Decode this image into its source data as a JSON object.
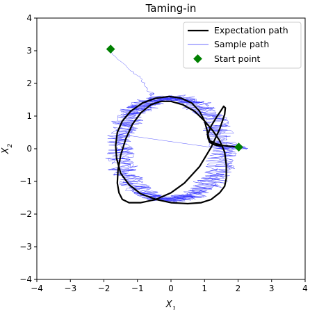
{
  "chart_data": {
    "type": "line",
    "title": "Taming-in",
    "xlabel": "X_1",
    "ylabel": "X_2",
    "xlim": [
      -4,
      4
    ],
    "ylim": [
      -4,
      4
    ],
    "xticks": [
      -4,
      -3,
      -2,
      -1,
      0,
      1,
      2,
      3,
      4
    ],
    "yticks": [
      -4,
      -3,
      -2,
      -1,
      0,
      1,
      2,
      3,
      4
    ],
    "grid": false,
    "legend_position": "top-right",
    "series": [
      {
        "name": "Expectation path",
        "kind": "line",
        "color": "#000000",
        "x": [
          2.02,
          1.7,
          1.55,
          1.35,
          1.15,
          1.1,
          1.2,
          1.35,
          1.48,
          1.57,
          1.62,
          1.6,
          1.45,
          1.2,
          0.85,
          0.4,
          0.0,
          -0.45,
          -0.9,
          -1.25,
          -1.45,
          -1.55,
          -1.6,
          -1.58,
          -1.5,
          -1.35,
          -1.15,
          -0.9,
          -0.6,
          -0.3,
          0.0,
          0.35,
          0.7,
          1.0,
          1.25,
          1.45,
          1.6,
          1.65,
          1.65,
          1.6,
          1.45,
          1.2,
          0.9,
          0.5,
          0.0,
          -0.45,
          -0.9,
          -1.25,
          -1.5,
          -1.62,
          -1.65,
          -1.6,
          -1.45,
          -1.2,
          -0.85,
          -0.45,
          -0.05,
          0.3,
          0.62,
          0.85,
          1.0,
          1.08,
          1.1,
          1.15,
          1.3,
          1.5
        ],
        "y": [
          0.05,
          0.08,
          0.1,
          0.15,
          0.25,
          0.45,
          0.7,
          0.95,
          1.15,
          1.3,
          1.25,
          1.05,
          0.6,
          0.05,
          -0.55,
          -1.05,
          -1.35,
          -1.55,
          -1.65,
          -1.65,
          -1.55,
          -1.35,
          -1.05,
          -0.65,
          -0.2,
          0.3,
          0.75,
          1.1,
          1.35,
          1.45,
          1.45,
          1.35,
          1.15,
          0.85,
          0.55,
          0.25,
          -0.1,
          -0.5,
          -0.9,
          -1.15,
          -1.35,
          -1.55,
          -1.65,
          -1.68,
          -1.65,
          -1.55,
          -1.38,
          -1.1,
          -0.75,
          -0.3,
          0.1,
          0.5,
          0.85,
          1.15,
          1.4,
          1.55,
          1.6,
          1.55,
          1.4,
          1.15,
          0.85,
          0.55,
          0.35,
          0.2,
          0.12,
          0.08
        ]
      },
      {
        "name": "Sample path",
        "kind": "line",
        "color": "#3a3aff"
      },
      {
        "name": "Start point",
        "kind": "scatter",
        "color": "#008000",
        "x": [
          -1.8,
          2.02
        ],
        "y": [
          3.05,
          0.05
        ]
      }
    ]
  }
}
